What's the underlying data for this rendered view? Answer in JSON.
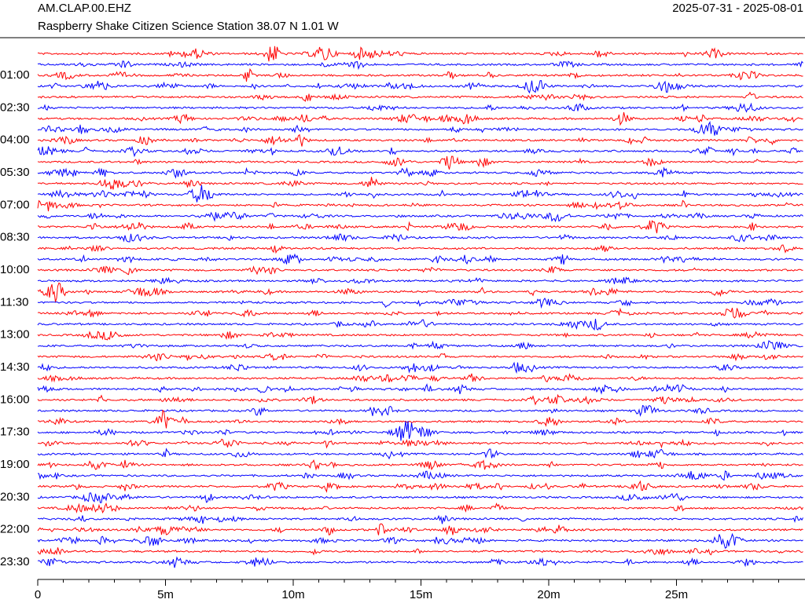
{
  "header": {
    "station": "AM.CLAP.00.EHZ",
    "date_range": "2025-07-31 - 2025-08-01",
    "subtitle": "Raspberry Shake Citizen Science Station  38.07 N 1.01 W"
  },
  "chart_data": {
    "type": "helicorder",
    "colors": [
      "#ff0000",
      "#0000ff"
    ],
    "y_labels": [
      "01:00",
      "02:30",
      "04:00",
      "05:30",
      "07:00",
      "08:30",
      "10:00",
      "11:30",
      "13:00",
      "14:30",
      "16:00",
      "17:30",
      "19:00",
      "20:30",
      "22:00",
      "23:30"
    ],
    "xlim": [
      0,
      30
    ],
    "xticks": [
      0,
      {
        "value": 5,
        "label": "5m"
      },
      {
        "value": 10,
        "label": "10m"
      },
      {
        "value": 15,
        "label": "15m"
      },
      {
        "value": 20,
        "label": "20m"
      },
      {
        "value": 25,
        "label": "25m"
      }
    ]
  }
}
